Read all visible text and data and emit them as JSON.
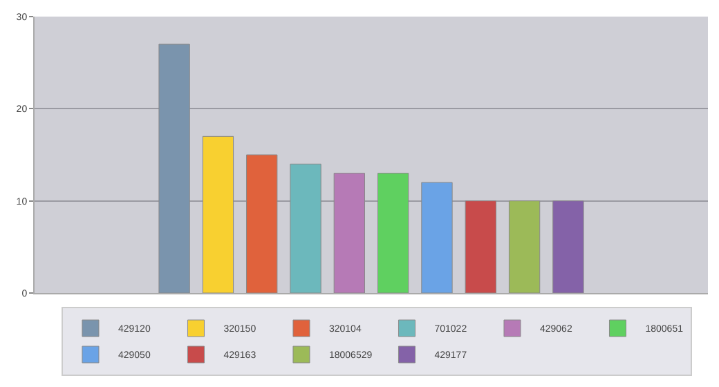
{
  "chart_data": {
    "type": "bar",
    "categories": [
      null
    ],
    "series": [
      {
        "name": "429120",
        "color": "#7a94ad",
        "values": [
          27
        ]
      },
      {
        "name": "320150",
        "color": "#f8d030",
        "values": [
          17
        ]
      },
      {
        "name": "320104",
        "color": "#e0623c",
        "values": [
          15
        ]
      },
      {
        "name": "701022",
        "color": "#6cb8bc",
        "values": [
          14
        ]
      },
      {
        "name": "429062",
        "color": "#b67ab6",
        "values": [
          13
        ]
      },
      {
        "name": "1800651",
        "color": "#5fd060",
        "values": [
          13
        ]
      },
      {
        "name": "429050",
        "color": "#6aa3e6",
        "values": [
          12
        ]
      },
      {
        "name": "429163",
        "color": "#c84b4b",
        "values": [
          10
        ]
      },
      {
        "name": "18006529",
        "color": "#9cba58",
        "values": [
          10
        ]
      },
      {
        "name": "429177",
        "color": "#8462a8",
        "values": [
          10
        ]
      }
    ],
    "ylim": [
      0,
      30
    ],
    "yticks": [
      0,
      10,
      20,
      30
    ],
    "grid": "y",
    "legend": "bottom"
  }
}
